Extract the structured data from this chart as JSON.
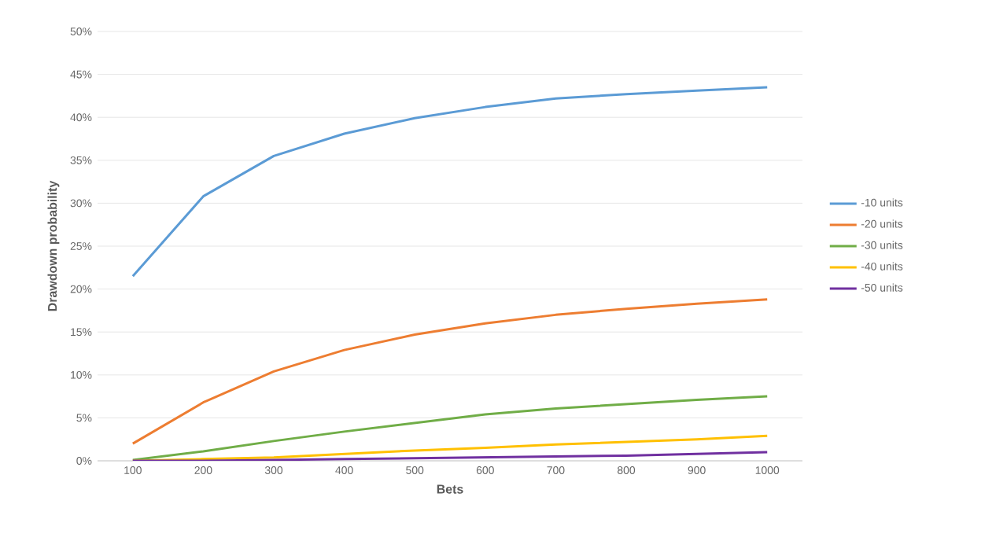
{
  "chart_data": {
    "type": "line",
    "xlabel": "Bets",
    "ylabel": "Drawdown probability",
    "categories": [
      "100",
      "200",
      "300",
      "400",
      "500",
      "600",
      "700",
      "800",
      "900",
      "1000"
    ],
    "series": [
      {
        "name": "-10 units",
        "color": "#5b9bd5",
        "values": [
          21.5,
          30.8,
          35.5,
          38.1,
          39.9,
          41.2,
          42.2,
          42.7,
          43.1,
          43.5
        ]
      },
      {
        "name": "-20 units",
        "color": "#ed7d31",
        "values": [
          2.0,
          6.8,
          10.4,
          12.9,
          14.7,
          16.0,
          17.0,
          17.7,
          18.3,
          18.8
        ]
      },
      {
        "name": "-30 units",
        "color": "#70ad47",
        "values": [
          0.1,
          1.1,
          2.3,
          3.4,
          4.4,
          5.4,
          6.1,
          6.6,
          7.1,
          7.5
        ]
      },
      {
        "name": "-40 units",
        "color": "#ffc000",
        "values": [
          0,
          0.2,
          0.4,
          0.8,
          1.2,
          1.5,
          1.9,
          2.2,
          2.5,
          2.9
        ]
      },
      {
        "name": "-50 units",
        "color": "#7030a0",
        "values": [
          0,
          0,
          0.1,
          0.2,
          0.3,
          0.4,
          0.5,
          0.6,
          0.8,
          1.0
        ]
      }
    ],
    "ylim": [
      0,
      50
    ],
    "yticks": [
      {
        "value": 0,
        "label": "0%"
      },
      {
        "value": 5,
        "label": "5%"
      },
      {
        "value": 10,
        "label": "10%"
      },
      {
        "value": 15,
        "label": "15%"
      },
      {
        "value": 20,
        "label": "20%"
      },
      {
        "value": 25,
        "label": "25%"
      },
      {
        "value": 30,
        "label": "30%"
      },
      {
        "value": 35,
        "label": "35%"
      },
      {
        "value": 40,
        "label": "40%"
      },
      {
        "value": 45,
        "label": "45%"
      },
      {
        "value": 50,
        "label": "50%"
      }
    ],
    "grid": "y",
    "legend": "right",
    "marker": "none",
    "line_style": "solid"
  }
}
